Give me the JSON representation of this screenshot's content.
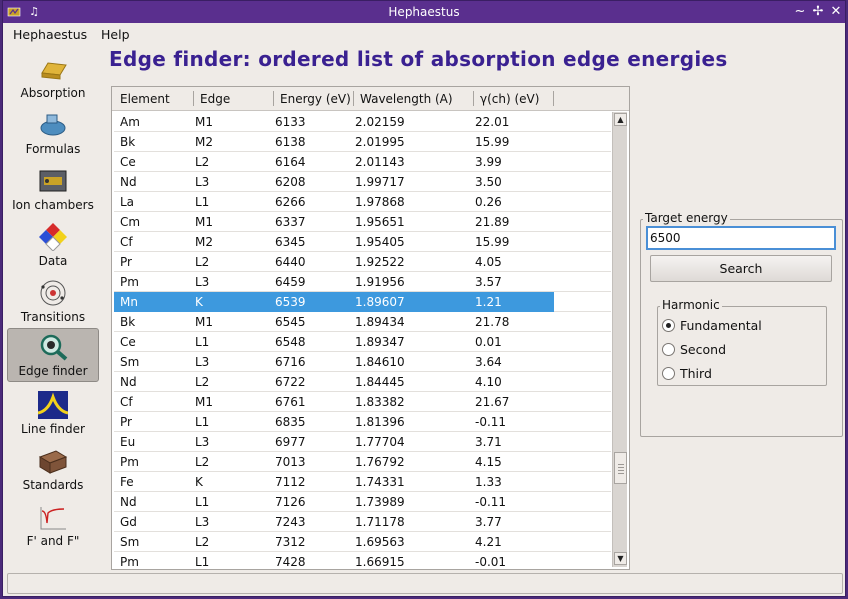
{
  "window": {
    "title": "Hephaestus",
    "controls": [
      "minimize",
      "maximize",
      "close"
    ]
  },
  "menu": {
    "items": [
      {
        "label": "Hephaestus"
      },
      {
        "label": "Help"
      }
    ]
  },
  "sidebar": {
    "items": [
      {
        "label": "Absorption",
        "icon": "gold-bar-icon"
      },
      {
        "label": "Formulas",
        "icon": "flask-icon"
      },
      {
        "label": "Ion chambers",
        "icon": "ion-chamber-icon"
      },
      {
        "label": "Data",
        "icon": "hazard-diamond-icon"
      },
      {
        "label": "Transitions",
        "icon": "atom-icon"
      },
      {
        "label": "Edge finder",
        "icon": "magnifier-icon",
        "active": true
      },
      {
        "label": "Line finder",
        "icon": "spectrum-icon"
      },
      {
        "label": "Standards",
        "icon": "box-icon"
      },
      {
        "label": "F' and F\"",
        "icon": "anomalous-plot-icon"
      }
    ]
  },
  "main": {
    "title": "Edge finder: ordered list of absorption edge energies"
  },
  "table": {
    "columns": [
      "Element",
      "Edge",
      "Energy (eV)",
      "Wavelength (A)",
      "γ(ch) (eV)"
    ],
    "selected_index": 9,
    "rows": [
      [
        "Am",
        "M1",
        "6133",
        "2.02159",
        "22.01"
      ],
      [
        "Bk",
        "M2",
        "6138",
        "2.01995",
        "15.99"
      ],
      [
        "Ce",
        "L2",
        "6164",
        "2.01143",
        "3.99"
      ],
      [
        "Nd",
        "L3",
        "6208",
        "1.99717",
        "3.50"
      ],
      [
        "La",
        "L1",
        "6266",
        "1.97868",
        "0.26"
      ],
      [
        "Cm",
        "M1",
        "6337",
        "1.95651",
        "21.89"
      ],
      [
        "Cf",
        "M2",
        "6345",
        "1.95405",
        "15.99"
      ],
      [
        "Pr",
        "L2",
        "6440",
        "1.92522",
        "4.05"
      ],
      [
        "Pm",
        "L3",
        "6459",
        "1.91956",
        "3.57"
      ],
      [
        "Mn",
        "K",
        "6539",
        "1.89607",
        "1.21"
      ],
      [
        "Bk",
        "M1",
        "6545",
        "1.89434",
        "21.78"
      ],
      [
        "Ce",
        "L1",
        "6548",
        "1.89347",
        "0.01"
      ],
      [
        "Sm",
        "L3",
        "6716",
        "1.84610",
        "3.64"
      ],
      [
        "Nd",
        "L2",
        "6722",
        "1.84445",
        "4.10"
      ],
      [
        "Cf",
        "M1",
        "6761",
        "1.83382",
        "21.67"
      ],
      [
        "Pr",
        "L1",
        "6835",
        "1.81396",
        "-0.11"
      ],
      [
        "Eu",
        "L3",
        "6977",
        "1.77704",
        "3.71"
      ],
      [
        "Pm",
        "L2",
        "7013",
        "1.76792",
        "4.15"
      ],
      [
        "Fe",
        "K",
        "7112",
        "1.74331",
        "1.33"
      ],
      [
        "Nd",
        "L1",
        "7126",
        "1.73989",
        "-0.11"
      ],
      [
        "Gd",
        "L3",
        "7243",
        "1.71178",
        "3.77"
      ],
      [
        "Sm",
        "L2",
        "7312",
        "1.69563",
        "4.21"
      ],
      [
        "Pm",
        "L1",
        "7428",
        "1.66915",
        "-0.01"
      ]
    ]
  },
  "target": {
    "group_label": "Target energy",
    "value": "6500",
    "search_label": "Search"
  },
  "harmonic": {
    "group_label": "Harmonic",
    "options": [
      {
        "label": "Fundamental",
        "checked": true
      },
      {
        "label": "Second",
        "checked": false
      },
      {
        "label": "Third",
        "checked": false
      }
    ]
  },
  "colors": {
    "title_bar": "#5a2f8e",
    "page_title": "#3a2191",
    "selection": "#3d99de"
  }
}
